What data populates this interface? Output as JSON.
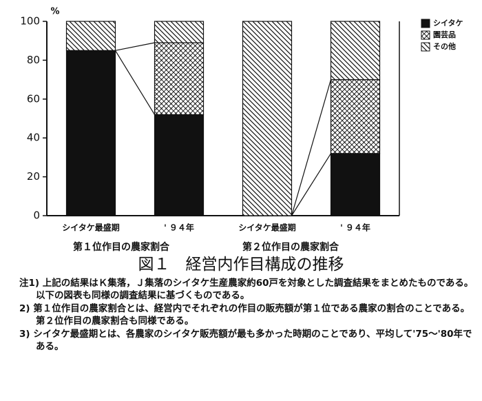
{
  "chart_data": {
    "type": "bar",
    "stacked": true,
    "ylabel": "%",
    "categories": [
      "シイタケ最盛期",
      "' ９４年",
      "シイタケ最盛期",
      "' ９４年"
    ],
    "group_labels": [
      "第１位作目の農家割合",
      "第２位作目の農家割合"
    ],
    "series": [
      {
        "name": "シイタケ",
        "color": "#111111",
        "pattern": "solid",
        "values": [
          85,
          52,
          0,
          32
        ]
      },
      {
        "name": "園芸品",
        "color": "#111111",
        "pattern": "cross",
        "values": [
          0,
          37,
          0,
          38
        ]
      },
      {
        "name": "その他",
        "color": "#111111",
        "pattern": "hatch",
        "values": [
          15,
          11,
          100,
          30
        ]
      }
    ],
    "ylim": [
      0,
      100
    ],
    "yticks": [
      0,
      20,
      40,
      60,
      80,
      100
    ],
    "grid": false,
    "legend": "right"
  },
  "figure_title": "図１　経営内作目構成の推移",
  "notes": [
    "注1) 上記の結果はＫ集落，Ｊ集落のシイタケ生産農家約60戸を対象とした調査結果をまとめたものである。以下の図表も同様の調査結果に基づくものである。",
    "2) 第１位作目の農家割合とは、経営内でそれぞれの作目の販売額が第１位である農家の割合のことである。第２位作目の農家割合も同様である。",
    "3) シイタケ最盛期とは、各農家のシイタケ販売額が最も多かった時期のことであり、平均して'75～'80年である。"
  ]
}
